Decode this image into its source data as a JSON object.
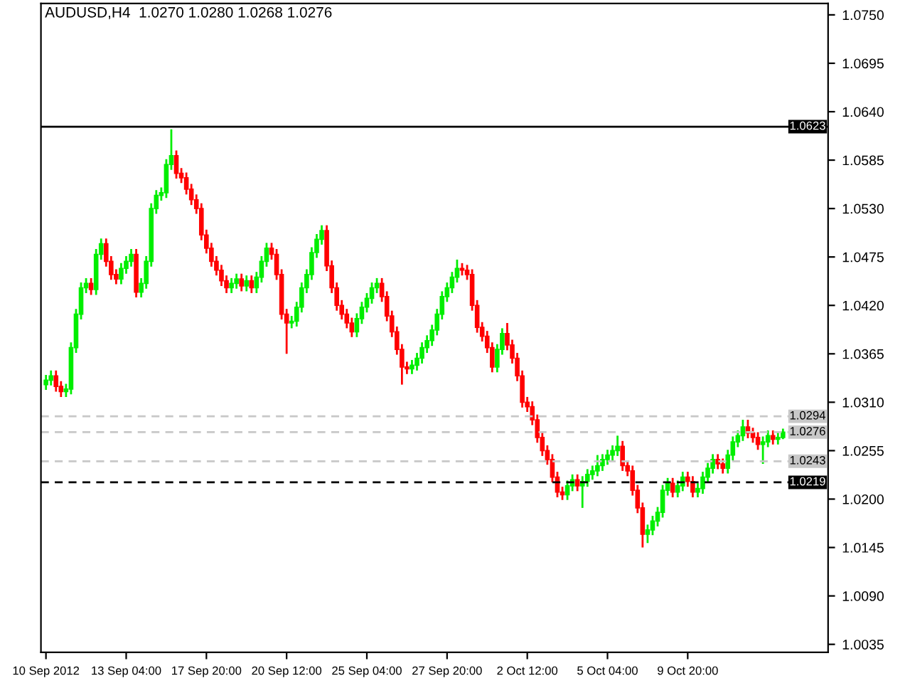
{
  "chart_data": {
    "type": "candlestick",
    "title": "AUDUSD,H4  1.0270 1.0280 1.0268 1.0276",
    "categories": [
      "10 Sep 2012",
      null,
      null,
      null,
      null,
      null,
      null,
      null,
      null,
      null,
      null,
      null,
      null,
      null,
      null,
      null,
      "13 Sep 04:00",
      null,
      null,
      null,
      null,
      null,
      null,
      null,
      null,
      null,
      null,
      null,
      null,
      null,
      null,
      null,
      "17 Sep 20:00",
      null,
      null,
      null,
      null,
      null,
      null,
      null,
      null,
      null,
      null,
      null,
      null,
      null,
      null,
      null,
      "20 Sep 12:00",
      null,
      null,
      null,
      null,
      null,
      null,
      null,
      null,
      null,
      null,
      null,
      null,
      null,
      null,
      null,
      "25 Sep 04:00",
      null,
      null,
      null,
      null,
      null,
      null,
      null,
      null,
      null,
      null,
      null,
      null,
      null,
      null,
      null,
      "27 Sep 20:00",
      null,
      null,
      null,
      null,
      null,
      null,
      null,
      null,
      null,
      null,
      null,
      null,
      null,
      null,
      null,
      "2 Oct 12:00",
      null,
      null,
      null,
      null,
      null,
      null,
      null,
      null,
      null,
      null,
      null,
      null,
      null,
      null,
      null,
      "5 Oct 04:00",
      null,
      null,
      null,
      null,
      null,
      null,
      null,
      null,
      null,
      null,
      null,
      null,
      null,
      null,
      null,
      "9 Oct 20:00",
      null,
      null,
      null,
      null,
      null,
      null,
      null,
      null,
      null,
      null,
      null,
      null,
      null,
      null,
      null,
      null,
      null,
      null,
      null
    ],
    "ohlc": [
      [
        1.033,
        1.0341,
        1.0324,
        1.0335
      ],
      [
        1.0335,
        1.0346,
        1.0329,
        1.034
      ],
      [
        1.034,
        1.0346,
        1.0322,
        1.0328
      ],
      [
        1.0328,
        1.0334,
        1.0316,
        1.0322
      ],
      [
        1.0322,
        1.0331,
        1.0316,
        1.0325
      ],
      [
        1.0325,
        1.0378,
        1.0319,
        1.0372
      ],
      [
        1.0372,
        1.0416,
        1.0366,
        1.041
      ],
      [
        1.041,
        1.0446,
        1.0404,
        1.044
      ],
      [
        1.044,
        1.0451,
        1.0434,
        1.0445
      ],
      [
        1.0445,
        1.0451,
        1.0432,
        1.0438
      ],
      [
        1.0438,
        1.0484,
        1.0432,
        1.0478
      ],
      [
        1.0478,
        1.0496,
        1.0472,
        1.049
      ],
      [
        1.049,
        1.0496,
        1.0464,
        1.047
      ],
      [
        1.047,
        1.0476,
        1.0449,
        1.0455
      ],
      [
        1.0455,
        1.0461,
        1.0444,
        1.045
      ],
      [
        1.045,
        1.0468,
        1.0444,
        1.0462
      ],
      [
        1.0462,
        1.0476,
        1.0456,
        1.047
      ],
      [
        1.047,
        1.0484,
        1.0464,
        1.0478
      ],
      [
        1.0478,
        1.0484,
        1.0429,
        1.0435
      ],
      [
        1.0435,
        1.0451,
        1.0429,
        1.0445
      ],
      [
        1.0445,
        1.0476,
        1.0439,
        1.047
      ],
      [
        1.047,
        1.0536,
        1.0464,
        1.053
      ],
      [
        1.053,
        1.0551,
        1.0524,
        1.0545
      ],
      [
        1.0545,
        1.0554,
        1.0539,
        1.0548
      ],
      [
        1.0548,
        1.0586,
        1.0542,
        1.058
      ],
      [
        1.058,
        1.062,
        1.0574,
        1.059
      ],
      [
        1.059,
        1.0596,
        1.0564,
        1.057
      ],
      [
        1.057,
        1.0576,
        1.0559,
        1.0565
      ],
      [
        1.0565,
        1.0571,
        1.0546,
        1.0552
      ],
      [
        1.0552,
        1.0558,
        1.0534,
        1.054
      ],
      [
        1.054,
        1.0546,
        1.0524,
        1.053
      ],
      [
        1.053,
        1.0536,
        1.0494,
        1.05
      ],
      [
        1.05,
        1.0506,
        1.0479,
        1.0485
      ],
      [
        1.0485,
        1.0491,
        1.0464,
        1.047
      ],
      [
        1.047,
        1.0476,
        1.0454,
        1.046
      ],
      [
        1.046,
        1.0466,
        1.0442,
        1.0448
      ],
      [
        1.0448,
        1.0454,
        1.0434,
        1.044
      ],
      [
        1.044,
        1.0451,
        1.0434,
        1.0445
      ],
      [
        1.0445,
        1.0456,
        1.0439,
        1.045
      ],
      [
        1.045,
        1.0456,
        1.0436,
        1.0442
      ],
      [
        1.0442,
        1.0454,
        1.0436,
        1.0448
      ],
      [
        1.0448,
        1.0454,
        1.0434,
        1.044
      ],
      [
        1.044,
        1.0458,
        1.0434,
        1.0452
      ],
      [
        1.0452,
        1.0476,
        1.0446,
        1.047
      ],
      [
        1.047,
        1.0491,
        1.0464,
        1.0485
      ],
      [
        1.0485,
        1.0491,
        1.0472,
        1.0478
      ],
      [
        1.0478,
        1.0484,
        1.0449,
        1.0455
      ],
      [
        1.0455,
        1.0461,
        1.0404,
        1.041
      ],
      [
        1.041,
        1.0416,
        1.0365,
        1.04
      ],
      [
        1.04,
        1.0408,
        1.0394,
        1.0402
      ],
      [
        1.0402,
        1.0424,
        1.0396,
        1.0418
      ],
      [
        1.0418,
        1.0446,
        1.0412,
        1.044
      ],
      [
        1.044,
        1.0461,
        1.0434,
        1.0455
      ],
      [
        1.0455,
        1.0486,
        1.0449,
        1.048
      ],
      [
        1.048,
        1.0501,
        1.0474,
        1.0495
      ],
      [
        1.0495,
        1.0511,
        1.0489,
        1.0505
      ],
      [
        1.0505,
        1.0511,
        1.0459,
        1.0465
      ],
      [
        1.0465,
        1.0471,
        1.0434,
        1.044
      ],
      [
        1.044,
        1.0446,
        1.0414,
        1.042
      ],
      [
        1.042,
        1.0426,
        1.0404,
        1.041
      ],
      [
        1.041,
        1.0416,
        1.0394,
        1.04
      ],
      [
        1.04,
        1.0406,
        1.0384,
        1.039
      ],
      [
        1.039,
        1.0411,
        1.0384,
        1.0405
      ],
      [
        1.0405,
        1.0424,
        1.0399,
        1.0418
      ],
      [
        1.0418,
        1.0434,
        1.0412,
        1.0428
      ],
      [
        1.0428,
        1.0446,
        1.0422,
        1.044
      ],
      [
        1.044,
        1.0451,
        1.0434,
        1.0445
      ],
      [
        1.0445,
        1.0451,
        1.0424,
        1.043
      ],
      [
        1.043,
        1.0436,
        1.0402,
        1.0408
      ],
      [
        1.0408,
        1.0414,
        1.0384,
        1.039
      ],
      [
        1.039,
        1.0396,
        1.0364,
        1.037
      ],
      [
        1.037,
        1.0376,
        1.033,
        1.035
      ],
      [
        1.035,
        1.0356,
        1.0342,
        1.0348
      ],
      [
        1.0348,
        1.0358,
        1.0342,
        1.0352
      ],
      [
        1.0352,
        1.0366,
        1.0346,
        1.036
      ],
      [
        1.036,
        1.0378,
        1.0354,
        1.0372
      ],
      [
        1.0372,
        1.0386,
        1.0366,
        1.038
      ],
      [
        1.038,
        1.0398,
        1.0374,
        1.0392
      ],
      [
        1.0392,
        1.0416,
        1.0386,
        1.041
      ],
      [
        1.041,
        1.0436,
        1.0404,
        1.043
      ],
      [
        1.043,
        1.0446,
        1.0424,
        1.044
      ],
      [
        1.044,
        1.0458,
        1.0434,
        1.0452
      ],
      [
        1.0452,
        1.0472,
        1.0446,
        1.0462
      ],
      [
        1.0462,
        1.0468,
        1.0454,
        1.046
      ],
      [
        1.046,
        1.0466,
        1.0449,
        1.0455
      ],
      [
        1.0455,
        1.0461,
        1.0414,
        1.042
      ],
      [
        1.042,
        1.0426,
        1.0389,
        1.0395
      ],
      [
        1.0395,
        1.0401,
        1.0379,
        1.0385
      ],
      [
        1.0385,
        1.0391,
        1.0366,
        1.0372
      ],
      [
        1.0372,
        1.0378,
        1.0344,
        1.035
      ],
      [
        1.035,
        1.0376,
        1.0344,
        1.037
      ],
      [
        1.037,
        1.0394,
        1.0364,
        1.0388
      ],
      [
        1.0388,
        1.04,
        1.0369,
        1.0375
      ],
      [
        1.0375,
        1.0381,
        1.0354,
        1.036
      ],
      [
        1.036,
        1.0366,
        1.0334,
        1.034
      ],
      [
        1.034,
        1.0346,
        1.0304,
        1.031
      ],
      [
        1.031,
        1.0316,
        1.0299,
        1.0305
      ],
      [
        1.0305,
        1.0311,
        1.0284,
        1.029
      ],
      [
        1.029,
        1.0296,
        1.0264,
        1.027
      ],
      [
        1.027,
        1.0276,
        1.0249,
        1.0255
      ],
      [
        1.0255,
        1.0261,
        1.0239,
        1.0245
      ],
      [
        1.0245,
        1.0251,
        1.0219,
        1.0225
      ],
      [
        1.0225,
        1.0231,
        1.0202,
        1.0208
      ],
      [
        1.0208,
        1.0214,
        1.0199,
        1.0205
      ],
      [
        1.0205,
        1.0221,
        1.0199,
        1.0215
      ],
      [
        1.0215,
        1.0228,
        1.0209,
        1.0222
      ],
      [
        1.0222,
        1.0228,
        1.0209,
        1.0215
      ],
      [
        1.0215,
        1.0226,
        1.019,
        1.022
      ],
      [
        1.022,
        1.0234,
        1.0214,
        1.0228
      ],
      [
        1.0228,
        1.0238,
        1.0222,
        1.0232
      ],
      [
        1.0232,
        1.025,
        1.0226,
        1.0238
      ],
      [
        1.0238,
        1.0251,
        1.0232,
        1.0245
      ],
      [
        1.0245,
        1.0256,
        1.0239,
        1.025
      ],
      [
        1.025,
        1.0261,
        1.0244,
        1.0255
      ],
      [
        1.0255,
        1.0272,
        1.0249,
        1.026
      ],
      [
        1.026,
        1.0266,
        1.0232,
        1.0238
      ],
      [
        1.0238,
        1.0244,
        1.0226,
        1.0232
      ],
      [
        1.0232,
        1.0238,
        1.0204,
        1.021
      ],
      [
        1.021,
        1.0216,
        1.0184,
        1.019
      ],
      [
        1.019,
        1.0196,
        1.0145,
        1.016
      ],
      [
        1.016,
        1.0171,
        1.015,
        1.0165
      ],
      [
        1.0165,
        1.0181,
        1.0159,
        1.0175
      ],
      [
        1.0175,
        1.0191,
        1.0169,
        1.0185
      ],
      [
        1.0185,
        1.0216,
        1.0179,
        1.021
      ],
      [
        1.021,
        1.0224,
        1.0204,
        1.0218
      ],
      [
        1.0218,
        1.0224,
        1.0202,
        1.0208
      ],
      [
        1.0208,
        1.0221,
        1.0202,
        1.0215
      ],
      [
        1.0215,
        1.0231,
        1.0209,
        1.0225
      ],
      [
        1.0225,
        1.0231,
        1.0214,
        1.022
      ],
      [
        1.022,
        1.0226,
        1.0202,
        1.0208
      ],
      [
        1.0208,
        1.0218,
        1.0202,
        1.0212
      ],
      [
        1.0212,
        1.0231,
        1.0206,
        1.0225
      ],
      [
        1.0225,
        1.0241,
        1.0219,
        1.0235
      ],
      [
        1.0235,
        1.0251,
        1.0229,
        1.0245
      ],
      [
        1.0245,
        1.0251,
        1.0234,
        1.024
      ],
      [
        1.024,
        1.0246,
        1.0229,
        1.0235
      ],
      [
        1.0235,
        1.0256,
        1.0229,
        1.025
      ],
      [
        1.025,
        1.0271,
        1.0244,
        1.0265
      ],
      [
        1.0265,
        1.0278,
        1.0259,
        1.0272
      ],
      [
        1.0272,
        1.029,
        1.0266,
        1.0282
      ],
      [
        1.0282,
        1.029,
        1.0269,
        1.0275
      ],
      [
        1.0275,
        1.0281,
        1.0264,
        1.027
      ],
      [
        1.027,
        1.0276,
        1.0256,
        1.0262
      ],
      [
        1.0262,
        1.0271,
        1.024,
        1.0265
      ],
      [
        1.0265,
        1.0278,
        1.0259,
        1.0272
      ],
      [
        1.0272,
        1.0278,
        1.0262,
        1.0268
      ],
      [
        1.0268,
        1.0276,
        1.0262,
        1.027
      ],
      [
        1.027,
        1.028,
        1.0268,
        1.0276
      ]
    ],
    "colors": [
      "#00ee00",
      "#00ee00",
      "#ff0000",
      "#ff0000",
      "#00ee00",
      "#00ee00",
      "#00ee00",
      "#00ee00",
      "#00ee00",
      "#ff0000",
      "#00ee00",
      "#00ee00",
      "#ff0000",
      "#ff0000",
      "#ff0000",
      "#00ee00",
      "#00ee00",
      "#00ee00",
      "#ff0000",
      "#00ee00",
      "#00ee00",
      "#00ee00",
      "#00ee00",
      "#00ee00",
      "#00ee00",
      "#00ee00",
      "#ff0000",
      "#ff0000",
      "#ff0000",
      "#ff0000",
      "#ff0000",
      "#ff0000",
      "#ff0000",
      "#ff0000",
      "#ff0000",
      "#ff0000",
      "#ff0000",
      "#00ee00",
      "#00ee00",
      "#ff0000",
      "#00ee00",
      "#ff0000",
      "#00ee00",
      "#00ee00",
      "#00ee00",
      "#ff0000",
      "#ff0000",
      "#ff0000",
      "#ff0000",
      "#00ee00",
      "#00ee00",
      "#00ee00",
      "#00ee00",
      "#00ee00",
      "#00ee00",
      "#00ee00",
      "#ff0000",
      "#ff0000",
      "#ff0000",
      "#ff0000",
      "#ff0000",
      "#ff0000",
      "#00ee00",
      "#00ee00",
      "#00ee00",
      "#00ee00",
      "#00ee00",
      "#ff0000",
      "#ff0000",
      "#ff0000",
      "#ff0000",
      "#ff0000",
      "#ff0000",
      "#00ee00",
      "#00ee00",
      "#00ee00",
      "#00ee00",
      "#00ee00",
      "#00ee00",
      "#00ee00",
      "#00ee00",
      "#00ee00",
      "#00ee00",
      "#ff0000",
      "#ff0000",
      "#ff0000",
      "#ff0000",
      "#ff0000",
      "#ff0000",
      "#ff0000",
      "#00ee00",
      "#00ee00",
      "#ff0000",
      "#ff0000",
      "#ff0000",
      "#ff0000",
      "#ff0000",
      "#ff0000",
      "#ff0000",
      "#ff0000",
      "#ff0000",
      "#ff0000",
      "#ff0000",
      "#ff0000",
      "#00ee00",
      "#00ee00",
      "#ff0000",
      "#00ee00",
      "#00ee00",
      "#00ee00",
      "#00ee00",
      "#00ee00",
      "#00ee00",
      "#00ee00",
      "#00ee00",
      "#ff0000",
      "#ff0000",
      "#ff0000",
      "#ff0000",
      "#ff0000",
      "#00ee00",
      "#00ee00",
      "#00ee00",
      "#00ee00",
      "#00ee00",
      "#ff0000",
      "#00ee00",
      "#00ee00",
      "#ff0000",
      "#ff0000",
      "#00ee00",
      "#00ee00",
      "#00ee00",
      "#00ee00",
      "#ff0000",
      "#ff0000",
      "#00ee00",
      "#00ee00",
      "#00ee00",
      "#00ee00",
      "#ff0000",
      "#ff0000",
      "#ff0000",
      "#00ee00",
      "#00ee00",
      "#ff0000",
      "#00ee00",
      "#00ee00"
    ],
    "ylim": [
      1.0026,
      1.0763
    ],
    "yticks": [
      {
        "value": 1.075,
        "label": "1.0750"
      },
      {
        "value": 1.0695,
        "label": "1.0695"
      },
      {
        "value": 1.064,
        "label": "1.0640"
      },
      {
        "value": 1.0585,
        "label": "1.0585"
      },
      {
        "value": 1.053,
        "label": "1.0530"
      },
      {
        "value": 1.0475,
        "label": "1.0475"
      },
      {
        "value": 1.042,
        "label": "1.0420"
      },
      {
        "value": 1.0365,
        "label": "1.0365"
      },
      {
        "value": 1.031,
        "label": "1.0310"
      },
      {
        "value": 1.0255,
        "label": "1.0255"
      },
      {
        "value": 1.02,
        "label": "1.0200"
      },
      {
        "value": 1.0145,
        "label": "1.0145"
      },
      {
        "value": 1.009,
        "label": "1.0090"
      },
      {
        "value": 1.0035,
        "label": "1.0035"
      }
    ],
    "ref_lines": [
      {
        "axis": "y",
        "value": 1.0623,
        "label": "1.0623",
        "color": "#000000",
        "line_style": "solid"
      },
      {
        "axis": "y",
        "value": 1.0294,
        "label": "1.0294",
        "color": "#c8c8c8",
        "line_style": "dashed"
      },
      {
        "axis": "y",
        "value": 1.0276,
        "label": "1.0276",
        "color": "#c8c8c8",
        "line_style": "dashed"
      },
      {
        "axis": "y",
        "value": 1.0243,
        "label": "1.0243",
        "color": "#c8c8c8",
        "line_style": "dashed"
      },
      {
        "axis": "y",
        "value": 1.0219,
        "label": "1.0219",
        "color": "#000000",
        "line_style": "dashed"
      }
    ],
    "grid": false,
    "legend": false
  }
}
